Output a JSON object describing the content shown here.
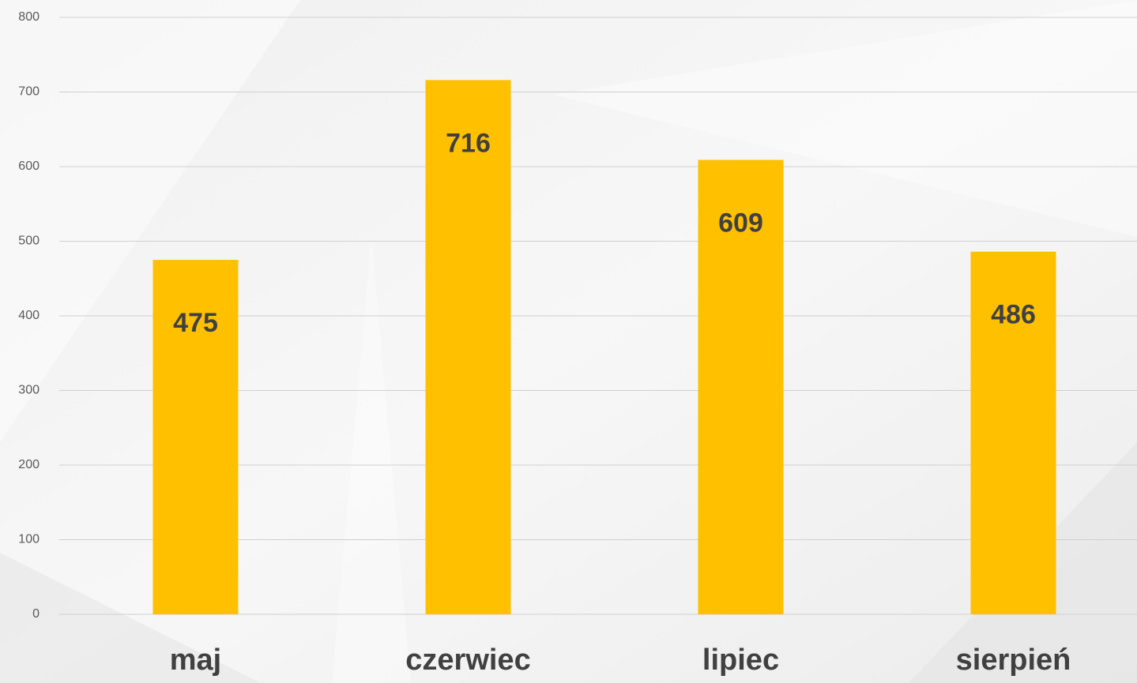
{
  "chart_data": {
    "type": "bar",
    "categories": [
      "maj",
      "czerwiec",
      "lipiec",
      "sierpień"
    ],
    "values": [
      475,
      716,
      609,
      486
    ],
    "color": "#ffc000",
    "ylim": [
      0,
      800
    ],
    "yticks": [
      0,
      100,
      200,
      300,
      400,
      500,
      600,
      700,
      800
    ],
    "grid": true
  }
}
